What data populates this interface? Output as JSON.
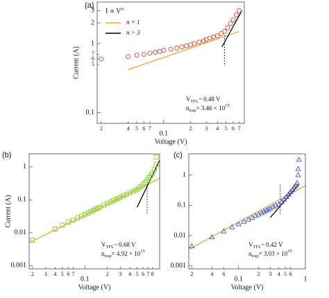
{
  "chart_data": [
    {
      "type": "scatter",
      "panel_label": "(a)",
      "xlabel": "Voltage (V)",
      "ylabel": "Current (A)",
      "xscale": "log",
      "yscale": "log",
      "xlim": [
        0.018,
        0.8
      ],
      "ylim": [
        0.07,
        4
      ],
      "xticks": [
        {
          "value": 0.02,
          "label": "2"
        },
        {
          "value": 0.04,
          "label": "4"
        },
        {
          "value": 0.05,
          "label": "5"
        },
        {
          "value": 0.06,
          "label": "6"
        },
        {
          "value": 0.07,
          "label": "7"
        },
        0.1,
        {
          "value": 0.2,
          "label": "2"
        },
        {
          "value": 0.3,
          "label": "3"
        },
        {
          "value": 0.4,
          "label": "4"
        },
        {
          "value": 0.5,
          "label": "5"
        },
        {
          "value": 0.6,
          "label": "6"
        },
        {
          "value": 0.7,
          "label": "7"
        }
      ],
      "yticks": [
        0.1,
        {
          "value": 0.5,
          "label": "5"
        },
        {
          "value": 0.6,
          "label": "6"
        },
        {
          "value": 0.7,
          "label": "7"
        },
        1,
        2,
        3
      ],
      "series": [
        {
          "color": "#e0412b",
          "marker": "circle",
          "x": [
            0.02,
            0.04,
            0.05,
            0.06,
            0.07,
            0.08,
            0.09,
            0.1,
            0.12,
            0.14,
            0.16,
            0.18,
            0.2,
            0.22,
            0.25,
            0.28,
            0.3,
            0.33,
            0.36,
            0.4,
            0.44,
            0.48,
            0.52,
            0.56,
            0.6,
            0.65,
            0.7
          ],
          "values": [
            0.6,
            0.65,
            0.68,
            0.7,
            0.73,
            0.75,
            0.77,
            0.8,
            0.83,
            0.86,
            0.9,
            0.93,
            0.96,
            1.0,
            1.05,
            1.1,
            1.15,
            1.2,
            1.25,
            1.3,
            1.4,
            1.5,
            1.7,
            1.95,
            2.2,
            2.6,
            3.0
          ]
        }
      ],
      "fits": [
        {
          "name": "n = 1",
          "color": "#f5a623",
          "x": [
            0.04,
            0.7
          ],
          "values": [
            0.42,
            1.5
          ]
        },
        {
          "name": "n > 3",
          "color": "#000000",
          "x": [
            0.45,
            0.75
          ],
          "values": [
            0.9,
            3.0
          ]
        }
      ],
      "legend_title": {
        "text": "I ∝ V",
        "superscript": "n"
      },
      "v_tfl_line": 0.48,
      "annotations": [
        {
          "symbol": "V",
          "subscript": "TFL",
          "text": "~ 0.48 V"
        },
        {
          "symbol": "n",
          "subscript": "trap",
          "text": "= 3.46 × 10",
          "superscript": "15"
        }
      ]
    },
    {
      "type": "scatter",
      "panel_label": "(b)",
      "xlabel": "Voltage (V)",
      "ylabel": "Current (A)",
      "xscale": "log",
      "yscale": "log",
      "xlim": [
        0.018,
        1.0
      ],
      "ylim": [
        0.0008,
        2.5
      ],
      "xticks": [
        {
          "value": 0.02,
          "label": "2"
        },
        {
          "value": 0.03,
          "label": "3"
        },
        {
          "value": 0.04,
          "label": "4"
        },
        {
          "value": 0.05,
          "label": "5"
        },
        {
          "value": 0.06,
          "label": "6"
        },
        {
          "value": 0.07,
          "label": "7"
        },
        0.1,
        {
          "value": 0.2,
          "label": "2"
        },
        {
          "value": 0.3,
          "label": "3"
        },
        {
          "value": 0.4,
          "label": "4"
        },
        {
          "value": 0.5,
          "label": "5"
        },
        {
          "value": 0.6,
          "label": "6"
        },
        {
          "value": 0.7,
          "label": "7"
        },
        {
          "value": 0.8,
          "label": "8"
        }
      ],
      "yticks": [
        0.001,
        0.01,
        0.1,
        1
      ],
      "series": [
        {
          "color": "#7ed321",
          "marker": "square",
          "x": [
            0.02,
            0.04,
            0.05,
            0.06,
            0.07,
            0.08,
            0.09,
            0.1,
            0.11,
            0.12,
            0.13,
            0.14,
            0.15,
            0.16,
            0.18,
            0.2,
            0.22,
            0.24,
            0.26,
            0.28,
            0.3,
            0.33,
            0.36,
            0.4,
            0.44,
            0.48,
            0.52,
            0.56,
            0.6,
            0.64,
            0.68,
            0.72,
            0.76,
            0.8,
            0.85,
            0.9,
            0.9
          ],
          "values": [
            0.006,
            0.013,
            0.017,
            0.021,
            0.024,
            0.028,
            0.032,
            0.036,
            0.04,
            0.044,
            0.048,
            0.052,
            0.056,
            0.06,
            0.069,
            0.077,
            0.086,
            0.094,
            0.103,
            0.111,
            0.12,
            0.134,
            0.147,
            0.165,
            0.183,
            0.2,
            0.22,
            0.25,
            0.29,
            0.34,
            0.4,
            0.47,
            0.55,
            0.65,
            0.85,
            1.2,
            2.0
          ]
        }
      ],
      "fits": [
        {
          "color": "#f5a623",
          "x": [
            0.018,
            1.0
          ],
          "values": [
            0.005,
            0.45
          ]
        },
        {
          "color": "#000000",
          "x": [
            0.5,
            1.0
          ],
          "values": [
            0.06,
            1.6
          ]
        }
      ],
      "v_tfl_line": 0.68,
      "annotations": [
        {
          "symbol": "V",
          "subscript": "TFL",
          "text": "~ 0.68 V"
        },
        {
          "symbol": "n",
          "subscript": "trap",
          "text": "= 4.92 × 10",
          "superscript": "15"
        }
      ]
    },
    {
      "type": "scatter",
      "panel_label": "(c)",
      "xlabel": "Voltage (V)",
      "xscale": "log",
      "yscale": "log",
      "xlim": [
        0.018,
        1.0
      ],
      "ylim": [
        0.0008,
        5
      ],
      "xticks": [
        {
          "value": 0.02,
          "label": "2"
        },
        {
          "value": 0.04,
          "label": "4"
        },
        {
          "value": 0.06,
          "label": "6"
        },
        0.1,
        {
          "value": 0.2,
          "label": "2"
        },
        {
          "value": 0.3,
          "label": "3"
        },
        {
          "value": 0.4,
          "label": "4"
        },
        {
          "value": 0.5,
          "label": "5"
        },
        {
          "value": 0.6,
          "label": "6"
        },
        1
      ],
      "yticks": [
        0.001,
        0.01,
        0.1,
        1
      ],
      "series": [
        {
          "color": "#3a52d8",
          "marker": "triangle",
          "x": [
            0.02,
            0.04,
            0.06,
            0.08,
            0.1,
            0.12,
            0.14,
            0.16,
            0.18,
            0.2,
            0.22,
            0.24,
            0.26,
            0.28,
            0.3,
            0.33,
            0.36,
            0.4,
            0.44,
            0.48,
            0.52,
            0.56,
            0.6,
            0.64,
            0.68,
            0.72,
            0.75,
            0.78,
            0.78,
            0.8
          ],
          "values": [
            0.0045,
            0.009,
            0.014,
            0.019,
            0.024,
            0.029,
            0.034,
            0.039,
            0.045,
            0.05,
            0.056,
            0.062,
            0.068,
            0.074,
            0.08,
            0.09,
            0.1,
            0.11,
            0.13,
            0.16,
            0.19,
            0.23,
            0.28,
            0.33,
            0.4,
            0.46,
            0.55,
            1.0,
            1.6,
            3.2
          ]
        }
      ],
      "fits": [
        {
          "color": "#f5a623",
          "x": [
            0.018,
            1.0
          ],
          "values": [
            0.0035,
            0.45
          ]
        },
        {
          "color": "#000000",
          "x": [
            0.3,
            0.8
          ],
          "values": [
            0.04,
            0.5
          ]
        }
      ],
      "v_tfl_line": 0.42,
      "annotations": [
        {
          "symbol": "V",
          "subscript": "TFL",
          "text": "~ 0.42 V"
        },
        {
          "symbol": "n",
          "subscript": "trap",
          "text": "= 3.03 × 10",
          "superscript": "15"
        }
      ]
    }
  ]
}
